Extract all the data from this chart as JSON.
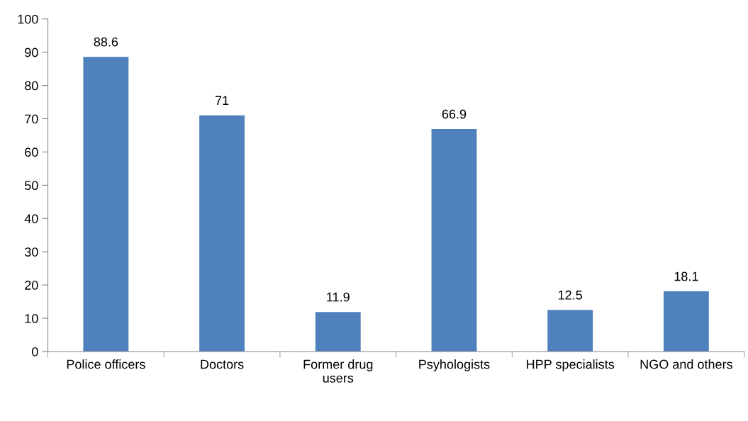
{
  "chart_data": {
    "type": "bar",
    "categories": [
      "Police officers",
      "Doctors",
      "Former drug\nusers",
      "Psyhologists",
      "HPP specialists",
      "NGO and others"
    ],
    "values": [
      88.6,
      71,
      11.9,
      66.9,
      12.5,
      18.1
    ],
    "color": "#4f81bd",
    "ylim": [
      0,
      100
    ],
    "yticks": [
      0,
      10,
      20,
      30,
      40,
      50,
      60,
      70,
      80,
      90,
      100
    ],
    "data_labels": true,
    "grid": false,
    "legend": false
  }
}
